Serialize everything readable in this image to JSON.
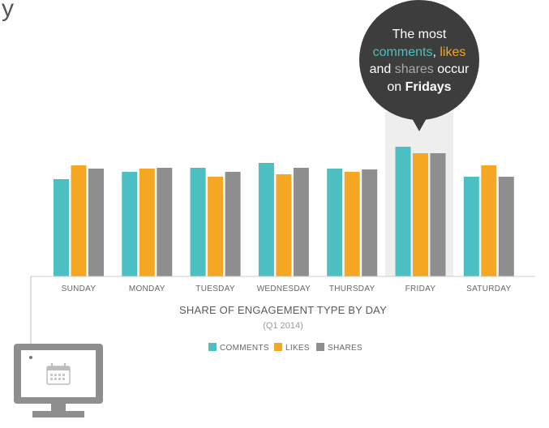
{
  "header_fragment": "y",
  "chart_data": {
    "type": "bar",
    "title": "SHARE OF ENGAGEMENT TYPE BY DAY",
    "subtitle": "(Q1 2014)",
    "categories": [
      "SUNDAY",
      "MONDAY",
      "TUESDAY",
      "WEDNESDAY",
      "THURSDAY",
      "FRIDAY",
      "SATURDAY"
    ],
    "series": [
      {
        "name": "COMMENTS",
        "color": "#4bbfc1",
        "values": [
          120,
          129,
          134,
          140,
          133,
          160,
          123
        ]
      },
      {
        "name": "LIKES",
        "color": "#f5a623",
        "values": [
          137,
          133,
          123,
          126,
          129,
          152,
          137
        ]
      },
      {
        "name": "SHARES",
        "color": "#8e8e8e",
        "values": [
          133,
          134,
          129,
          134,
          132,
          152,
          123
        ]
      }
    ],
    "highlight_category": "FRIDAY",
    "grid": false,
    "legend_position": "bottom-center"
  },
  "callout": {
    "line1": "The most",
    "comments": "comments",
    "comma": ",",
    "likes": "likes",
    "and": "and",
    "shares": "shares",
    "occur": "occur",
    "on": "on",
    "fridays": "Fridays",
    "circle_color": "#3d3d3d",
    "shares_color": "#a8a8a8"
  },
  "icon": {
    "name": "desktop-calendar-icon",
    "color": "#8e8e8e"
  }
}
